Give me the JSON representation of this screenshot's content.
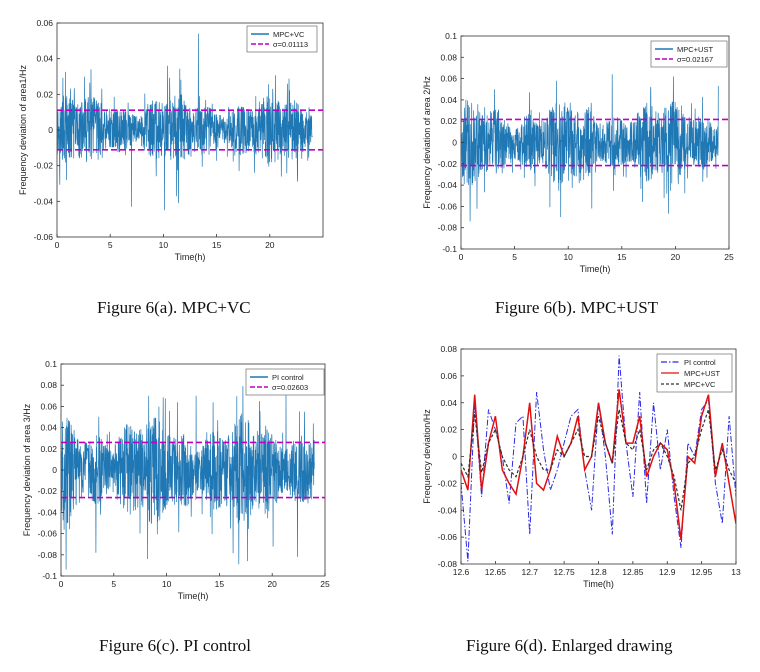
{
  "colors": {
    "signal": "#1f77b4",
    "sigma_line": "#c000c0",
    "pi": "#2a2ae6",
    "mpc_ust": "#e01010",
    "mpc_vc": "#303030",
    "axis": "#333333"
  },
  "captions": {
    "a": "Figure 6(a). MPC+VC",
    "b": "Figure 6(b). MPC+UST",
    "c": "Figure 6(c). PI control",
    "d": "Figure 6(d). Enlarged drawing"
  },
  "chart_data": [
    {
      "id": "a",
      "type": "line",
      "xlabel": "Time(h)",
      "ylabel": "Frequency deviation of area1/Hz",
      "xlim": [
        0,
        25
      ],
      "ylim": [
        -0.06,
        0.06
      ],
      "xticks": [
        0,
        5,
        10,
        15,
        20
      ],
      "xtick_labels": [
        "0",
        "5",
        "10",
        "15",
        "20"
      ],
      "yticks": [
        -0.06,
        -0.04,
        -0.02,
        0,
        0.02,
        0.04,
        0.06
      ],
      "ytick_labels": [
        "-0.06",
        "-0.04",
        "-0.02",
        "0",
        "0.02",
        "0.04",
        "0.06"
      ],
      "signal_end": 24,
      "noise_base": 0.0105,
      "spikes": [
        [
          13.3,
          0.054
        ],
        [
          7.0,
          -0.043
        ],
        [
          10.1,
          -0.045
        ],
        [
          11.4,
          -0.041
        ],
        [
          10.4,
          0.036
        ],
        [
          3.2,
          0.034
        ]
      ],
      "sigma": 0.01113,
      "legend": [
        "MPC+VC",
        "σ=0.01113"
      ]
    },
    {
      "id": "b",
      "type": "line",
      "xlabel": "Time(h)",
      "ylabel": "Frequency deviation of area 2/Hz",
      "xlim": [
        0,
        25
      ],
      "ylim": [
        -0.1,
        0.1
      ],
      "xticks": [
        0,
        5,
        10,
        15,
        20,
        25
      ],
      "xtick_labels": [
        "0",
        "5",
        "10",
        "15",
        "20",
        "25"
      ],
      "yticks": [
        -0.1,
        -0.08,
        -0.06,
        -0.04,
        -0.02,
        0,
        0.02,
        0.04,
        0.06,
        0.08,
        0.1
      ],
      "ytick_labels": [
        "-0.1",
        "-0.08",
        "-0.06",
        "-0.04",
        "-0.02",
        "0",
        "0.02",
        "0.04",
        "0.06",
        "0.08",
        "0.1"
      ],
      "signal_end": 24,
      "noise_base": 0.021,
      "spikes": [
        [
          14.1,
          0.064
        ],
        [
          19.8,
          0.062
        ],
        [
          9.3,
          -0.07
        ],
        [
          8.9,
          0.058
        ],
        [
          12.2,
          -0.062
        ],
        [
          24.0,
          0.053
        ]
      ],
      "sigma": 0.02167,
      "legend": [
        "MPC+UST",
        "σ=0.02167"
      ]
    },
    {
      "id": "c",
      "type": "line",
      "xlabel": "Time(h)",
      "ylabel": "Frequency deviation of area 3/Hz",
      "xlim": [
        0,
        25
      ],
      "ylim": [
        -0.1,
        0.1
      ],
      "xticks": [
        0,
        5,
        10,
        15,
        20,
        25
      ],
      "xtick_labels": [
        "0",
        "5",
        "10",
        "15",
        "20",
        "25"
      ],
      "yticks": [
        -0.1,
        -0.08,
        -0.06,
        -0.04,
        -0.02,
        0,
        0.02,
        0.04,
        0.06,
        0.08,
        0.1
      ],
      "ytick_labels": [
        "-0.1",
        "-0.08",
        "-0.06",
        "-0.04",
        "-0.02",
        "0",
        "0.02",
        "0.04",
        "0.06",
        "0.08",
        "0.1"
      ],
      "signal_end": 24,
      "noise_base": 0.027,
      "spikes": [
        [
          8.2,
          -0.084
        ],
        [
          22.4,
          -0.082
        ],
        [
          21.3,
          0.074
        ],
        [
          8.3,
          0.07
        ],
        [
          12.8,
          0.07
        ],
        [
          3.3,
          -0.078
        ]
      ],
      "sigma": 0.02603,
      "legend": [
        "PI control",
        "σ=0.02603"
      ]
    },
    {
      "id": "d",
      "type": "line",
      "xlabel": "Time(h)",
      "ylabel": "Frequency deviation/Hz",
      "xlim": [
        12.6,
        13
      ],
      "ylim": [
        -0.08,
        0.08
      ],
      "xticks": [
        12.6,
        12.65,
        12.7,
        12.75,
        12.8,
        12.85,
        12.9,
        12.95,
        13
      ],
      "xtick_labels": [
        "12.6",
        "12.65",
        "12.7",
        "12.75",
        "12.8",
        "12.85",
        "12.9",
        "12.95",
        "13"
      ],
      "yticks": [
        -0.08,
        -0.06,
        -0.04,
        -0.02,
        0,
        0.02,
        0.04,
        0.06,
        0.08
      ],
      "ytick_labels": [
        "-0.08",
        "-0.06",
        "-0.04",
        "-0.02",
        "0",
        "0.02",
        "0.04",
        "0.06",
        "0.08"
      ],
      "x": [
        12.6,
        12.61,
        12.62,
        12.63,
        12.64,
        12.65,
        12.66,
        12.67,
        12.68,
        12.69,
        12.7,
        12.71,
        12.72,
        12.73,
        12.74,
        12.75,
        12.76,
        12.77,
        12.78,
        12.79,
        12.8,
        12.81,
        12.82,
        12.83,
        12.84,
        12.85,
        12.86,
        12.87,
        12.88,
        12.89,
        12.9,
        12.91,
        12.92,
        12.93,
        12.94,
        12.95,
        12.96,
        12.97,
        12.98,
        12.99,
        13.0
      ],
      "series": [
        {
          "name": "PI control",
          "style": "dash-dot",
          "values": [
            -0.02,
            -0.078,
            0.04,
            -0.03,
            0.035,
            0.02,
            0.0,
            -0.035,
            0.025,
            0.03,
            -0.058,
            0.048,
            0.005,
            -0.025,
            -0.01,
            0.01,
            0.03,
            0.035,
            -0.01,
            -0.04,
            0.04,
            0.0,
            -0.058,
            0.075,
            0.01,
            -0.03,
            0.048,
            -0.035,
            0.04,
            -0.01,
            0.02,
            -0.03,
            -0.068,
            0.01,
            0.0,
            0.035,
            0.042,
            -0.02,
            -0.05,
            0.03,
            -0.03
          ]
        },
        {
          "name": "MPC+UST",
          "style": "solid",
          "values": [
            -0.01,
            -0.025,
            0.046,
            -0.025,
            0.01,
            0.03,
            -0.01,
            -0.02,
            -0.028,
            0.0,
            0.04,
            -0.02,
            -0.025,
            -0.01,
            0.015,
            0.0,
            0.01,
            0.03,
            -0.01,
            0.0,
            0.04,
            0.01,
            -0.005,
            0.05,
            0.01,
            0.01,
            0.03,
            -0.015,
            0.0,
            0.01,
            0.005,
            -0.02,
            -0.062,
            0.0,
            -0.005,
            0.03,
            0.046,
            -0.015,
            0.01,
            -0.02,
            -0.05
          ]
        },
        {
          "name": "MPC+VC",
          "style": "dotted",
          "values": [
            -0.005,
            -0.015,
            0.032,
            -0.012,
            0.01,
            0.02,
            0.0,
            -0.01,
            -0.015,
            0.0,
            0.02,
            0.0,
            -0.01,
            -0.01,
            0.005,
            0.0,
            0.01,
            0.02,
            0.0,
            0.0,
            0.03,
            0.01,
            -0.005,
            0.035,
            0.01,
            0.005,
            0.02,
            -0.01,
            0.005,
            0.01,
            0.0,
            -0.015,
            -0.04,
            -0.005,
            0.0,
            0.02,
            0.035,
            -0.01,
            0.005,
            -0.01,
            -0.02
          ]
        }
      ],
      "legend": [
        "PI control",
        "MPC+UST",
        "MPC+VC"
      ]
    }
  ]
}
